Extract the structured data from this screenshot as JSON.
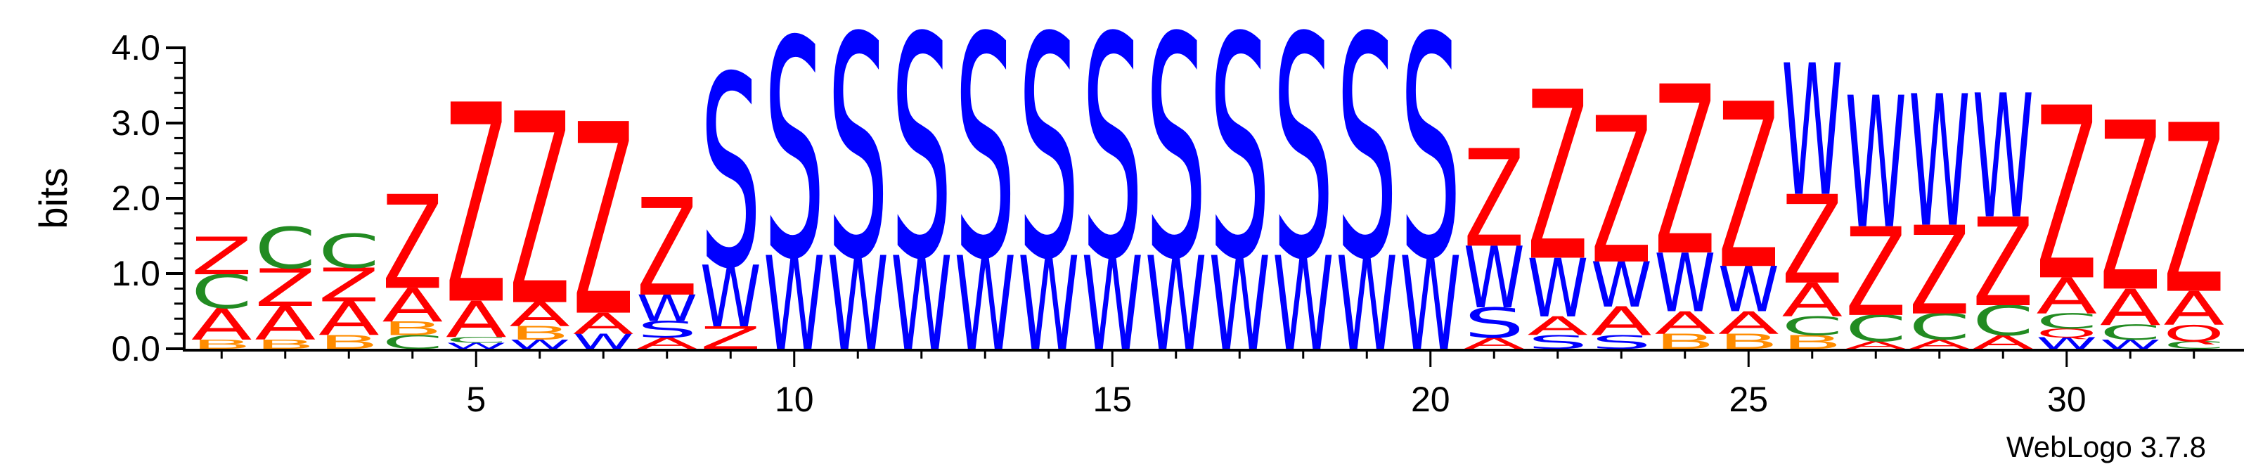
{
  "chart_data": {
    "type": "sequence-logo",
    "ylabel": "bits",
    "ylim": [
      0,
      4.0
    ],
    "y_ticks": [
      "0.0",
      "1.0",
      "2.0",
      "3.0",
      "4.0"
    ],
    "x_ticks": [
      "5",
      "10",
      "15",
      "20",
      "25",
      "30"
    ],
    "x_tick_positions": [
      5,
      10,
      15,
      20,
      25,
      30
    ],
    "credit": "WebLogo 3.7.8",
    "colors": {
      "Z": "#ff0000",
      "S": "#0000ff",
      "W": "#0000ff",
      "C": "#228b22",
      "A": "#ff0000",
      "B": "#ff8c00",
      "Q": "#ff0000"
    },
    "positions": [
      {
        "pos": 1,
        "stack": [
          [
            "B",
            0.12
          ],
          [
            "A",
            0.42
          ],
          [
            "C",
            0.45
          ],
          [
            "Z",
            0.5
          ]
        ]
      },
      {
        "pos": 2,
        "stack": [
          [
            "B",
            0.12
          ],
          [
            "A",
            0.45
          ],
          [
            "Z",
            0.5
          ],
          [
            "C",
            0.55
          ]
        ]
      },
      {
        "pos": 3,
        "stack": [
          [
            "B",
            0.18
          ],
          [
            "A",
            0.45
          ],
          [
            "Z",
            0.45
          ],
          [
            "C",
            0.45
          ]
        ]
      },
      {
        "pos": 4,
        "stack": [
          [
            "C",
            0.18
          ],
          [
            "B",
            0.18
          ],
          [
            "A",
            0.45
          ],
          [
            "Z",
            1.25
          ]
        ]
      },
      {
        "pos": 5,
        "stack": [
          [
            "W",
            0.08
          ],
          [
            "C",
            0.08
          ],
          [
            "A",
            0.48
          ],
          [
            "Z",
            2.65
          ]
        ]
      },
      {
        "pos": 6,
        "stack": [
          [
            "W",
            0.12
          ],
          [
            "B",
            0.18
          ],
          [
            "A",
            0.32
          ],
          [
            "Z",
            2.55
          ]
        ]
      },
      {
        "pos": 7,
        "stack": [
          [
            "W",
            0.2
          ],
          [
            "A",
            0.28
          ],
          [
            "Z",
            2.55
          ]
        ]
      },
      {
        "pos": 8,
        "stack": [
          [
            "A",
            0.15
          ],
          [
            "S",
            0.22
          ],
          [
            "W",
            0.35
          ],
          [
            "Z",
            1.3
          ]
        ]
      },
      {
        "pos": 9,
        "stack": [
          [
            "Z",
            0.3
          ],
          [
            "W",
            0.82
          ],
          [
            "S",
            2.55
          ]
        ]
      },
      {
        "pos": 10,
        "stack": [
          [
            "W",
            1.25
          ],
          [
            "S",
            2.9
          ]
        ]
      },
      {
        "pos": 11,
        "stack": [
          [
            "W",
            1.25
          ],
          [
            "S",
            2.95
          ]
        ]
      },
      {
        "pos": 12,
        "stack": [
          [
            "W",
            1.25
          ],
          [
            "S",
            2.95
          ]
        ]
      },
      {
        "pos": 13,
        "stack": [
          [
            "W",
            1.25
          ],
          [
            "S",
            2.95
          ]
        ]
      },
      {
        "pos": 14,
        "stack": [
          [
            "W",
            1.25
          ],
          [
            "S",
            2.95
          ]
        ]
      },
      {
        "pos": 15,
        "stack": [
          [
            "W",
            1.25
          ],
          [
            "S",
            2.95
          ]
        ]
      },
      {
        "pos": 16,
        "stack": [
          [
            "W",
            1.25
          ],
          [
            "S",
            2.95
          ]
        ]
      },
      {
        "pos": 17,
        "stack": [
          [
            "W",
            1.25
          ],
          [
            "S",
            2.95
          ]
        ]
      },
      {
        "pos": 18,
        "stack": [
          [
            "W",
            1.25
          ],
          [
            "S",
            2.95
          ]
        ]
      },
      {
        "pos": 19,
        "stack": [
          [
            "W",
            1.25
          ],
          [
            "S",
            2.95
          ]
        ]
      },
      {
        "pos": 20,
        "stack": [
          [
            "W",
            1.25
          ],
          [
            "S",
            2.95
          ]
        ]
      },
      {
        "pos": 21,
        "stack": [
          [
            "A",
            0.15
          ],
          [
            "S",
            0.4
          ],
          [
            "W",
            0.82
          ],
          [
            "Z",
            1.3
          ]
        ]
      },
      {
        "pos": 22,
        "stack": [
          [
            "S",
            0.18
          ],
          [
            "A",
            0.25
          ],
          [
            "W",
            0.78
          ],
          [
            "Z",
            2.25
          ]
        ]
      },
      {
        "pos": 23,
        "stack": [
          [
            "S",
            0.18
          ],
          [
            "A",
            0.38
          ],
          [
            "W",
            0.6
          ],
          [
            "Z",
            1.95
          ]
        ]
      },
      {
        "pos": 24,
        "stack": [
          [
            "B",
            0.2
          ],
          [
            "A",
            0.3
          ],
          [
            "W",
            0.78
          ],
          [
            "Z",
            2.25
          ]
        ]
      },
      {
        "pos": 25,
        "stack": [
          [
            "B",
            0.2
          ],
          [
            "A",
            0.3
          ],
          [
            "W",
            0.6
          ],
          [
            "Z",
            2.2
          ]
        ]
      },
      {
        "pos": 26,
        "stack": [
          [
            "B",
            0.18
          ],
          [
            "C",
            0.25
          ],
          [
            "A",
            0.45
          ],
          [
            "Z",
            1.18
          ],
          [
            "W",
            1.75
          ]
        ]
      },
      {
        "pos": 27,
        "stack": [
          [
            "A",
            0.1
          ],
          [
            "C",
            0.35
          ],
          [
            "Z",
            1.18
          ],
          [
            "W",
            1.75
          ]
        ]
      },
      {
        "pos": 28,
        "stack": [
          [
            "A",
            0.12
          ],
          [
            "C",
            0.35
          ],
          [
            "Z",
            1.18
          ],
          [
            "W",
            1.75
          ]
        ]
      },
      {
        "pos": 29,
        "stack": [
          [
            "A",
            0.18
          ],
          [
            "C",
            0.4
          ],
          [
            "Z",
            1.18
          ],
          [
            "W",
            1.65
          ]
        ]
      },
      {
        "pos": 30,
        "stack": [
          [
            "W",
            0.15
          ],
          [
            "Q",
            0.12
          ],
          [
            "C",
            0.2
          ],
          [
            "A",
            0.48
          ],
          [
            "Z",
            2.3
          ]
        ]
      },
      {
        "pos": 31,
        "stack": [
          [
            "W",
            0.12
          ],
          [
            "C",
            0.2
          ],
          [
            "A",
            0.48
          ],
          [
            "Z",
            2.25
          ]
        ]
      },
      {
        "pos": 32,
        "stack": [
          [
            "C",
            0.1
          ],
          [
            "Q",
            0.22
          ],
          [
            "A",
            0.45
          ],
          [
            "Z",
            2.25
          ]
        ]
      }
    ]
  }
}
